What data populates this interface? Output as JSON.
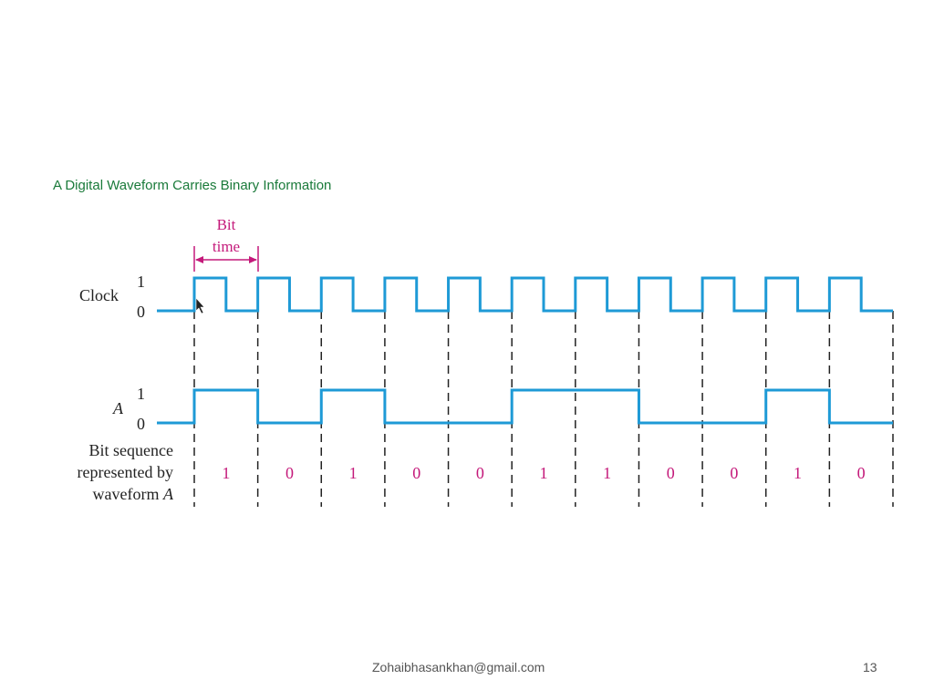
{
  "slide": {
    "title": "A Digital Waveform Carries Binary Information",
    "footer_email": "Zohaibhasankhan@gmail.com",
    "page_number": "13"
  },
  "diagram": {
    "bit_time_label_line1": "Bit",
    "bit_time_label_line2": "time",
    "clock": {
      "label": "Clock",
      "level_high": "1",
      "level_low": "0"
    },
    "waveform_a": {
      "label": "A",
      "level_high": "1",
      "level_low": "0"
    },
    "bit_sequence_label": [
      "Bit sequence",
      "represented by",
      "waveform "
    ],
    "bit_sequence_label_italic": "A",
    "bits": [
      "1",
      "0",
      "1",
      "0",
      "0",
      "1",
      "1",
      "0",
      "0",
      "1",
      "0"
    ],
    "colors": {
      "waveform": "#1e9ad6",
      "bit_values": "#c4197a",
      "bit_time_annotation": "#c4197a",
      "title": "#1a7a3a"
    }
  }
}
